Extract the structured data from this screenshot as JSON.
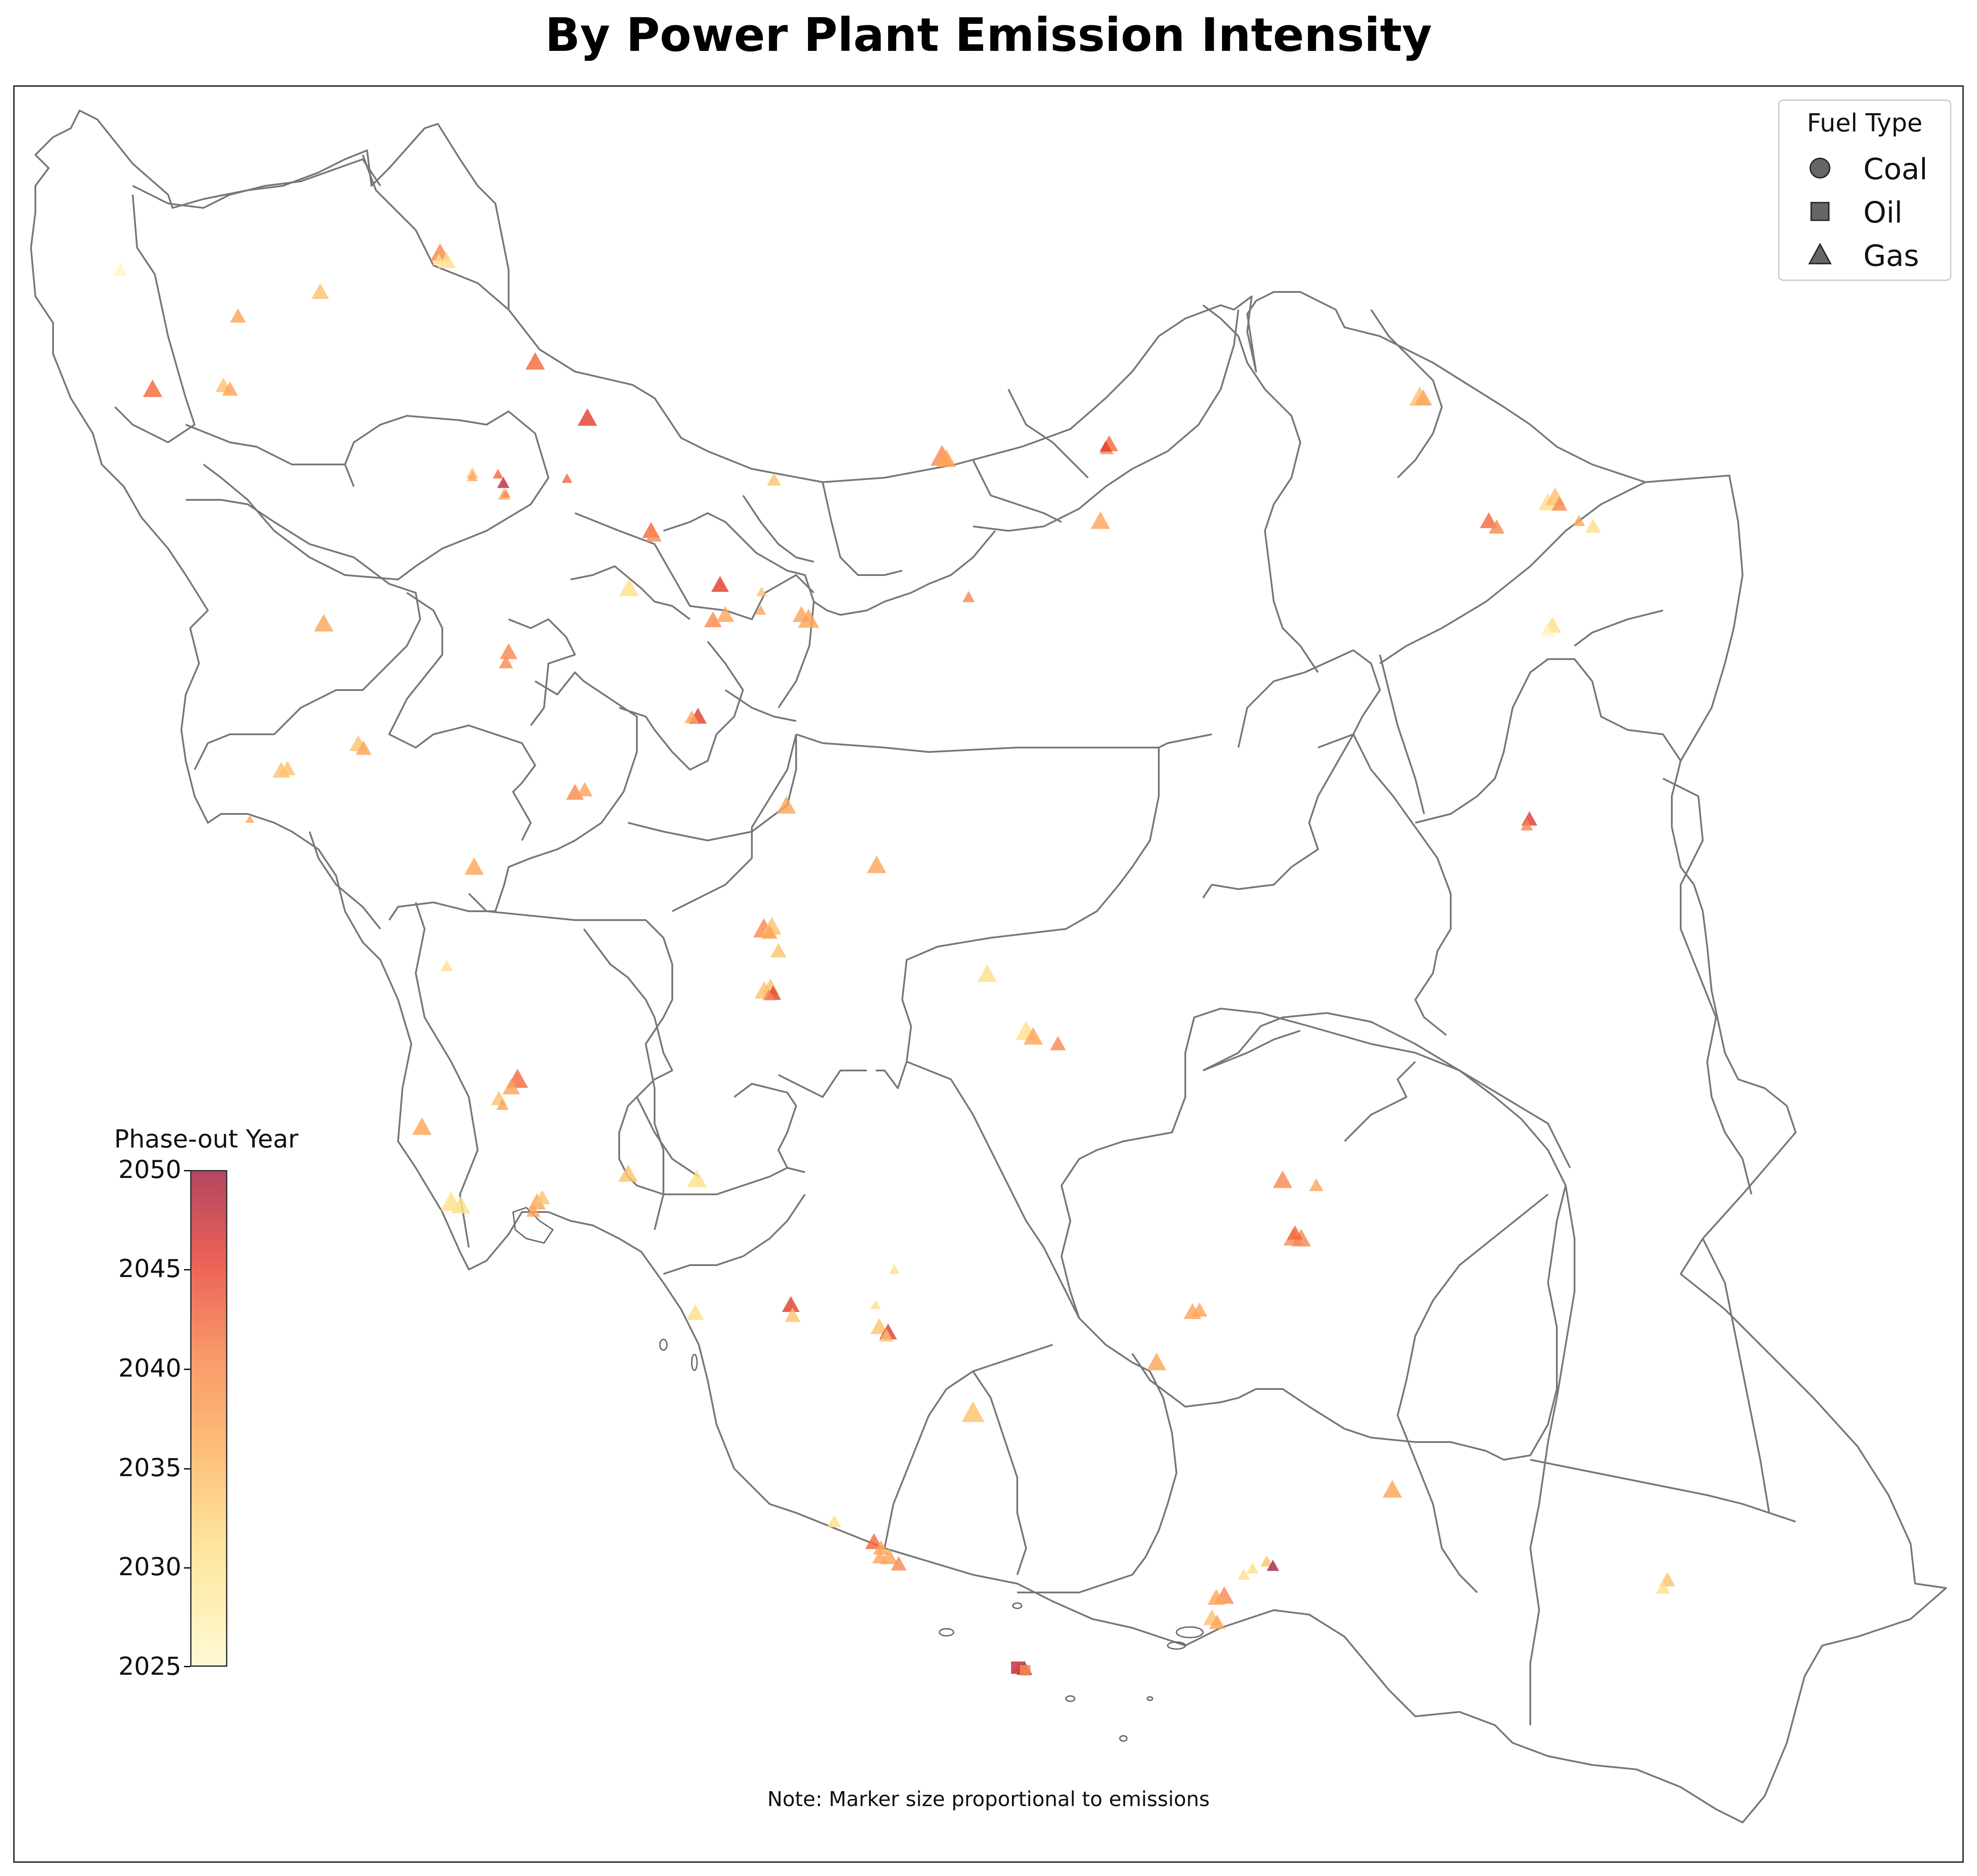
{
  "title": "By Power Plant Emission Intensity",
  "legend": {
    "title": "Fuel Type",
    "items": [
      {
        "label": "Coal",
        "marker": "circle"
      },
      {
        "label": "Oil",
        "marker": "square"
      },
      {
        "label": "Gas",
        "marker": "triangle"
      }
    ]
  },
  "colorbar": {
    "label": "Phase-out Year",
    "ticks": [
      "2050",
      "2045",
      "2040",
      "2035",
      "2030",
      "2025"
    ],
    "range": [
      2025,
      2050
    ],
    "colors": [
      "#fff9cc",
      "#fee08b",
      "#fdb060",
      "#f98a50",
      "#e8463a",
      "#a52845"
    ]
  },
  "note": "Note: Marker size proportional to emissions",
  "colors": {
    "border": "#777777",
    "frame": "#222222"
  }
}
